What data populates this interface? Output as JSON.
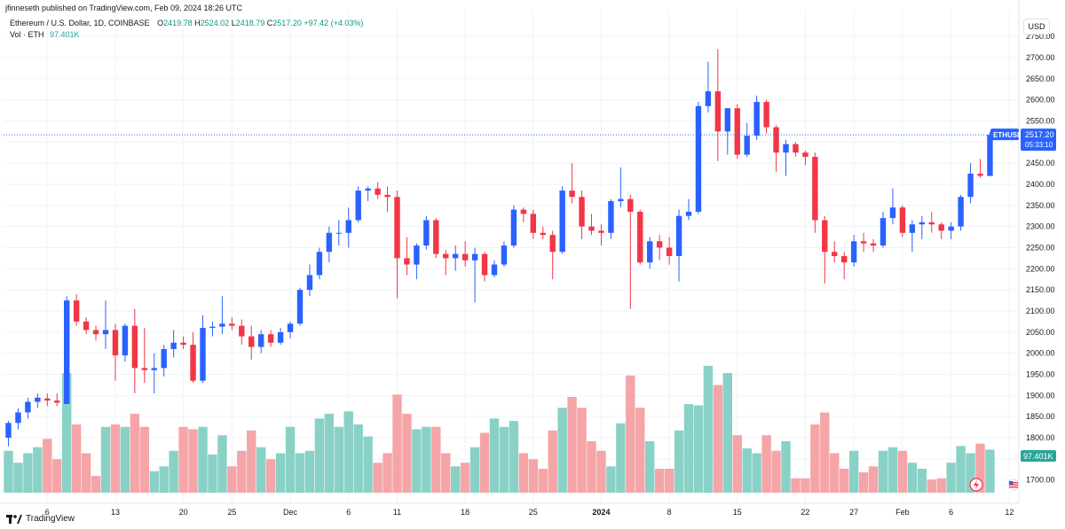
{
  "header": {
    "published_text": "jfinneseth published on TradingView.com, Feb 09, 2024 18:26 UTC",
    "symbol_title": "Ethereum / U.S. Dollar, 1D, COINBASE",
    "open_label": "O",
    "open_value": "2419.78",
    "high_label": "H",
    "high_value": "2524.02",
    "low_label": "L",
    "low_value": "2418.79",
    "close_label": "C",
    "close_value": "2517.20",
    "change_value": "+97.42 (+4.03%)",
    "volume_label": "Vol · ETH",
    "volume_value": "97.401K"
  },
  "currency_button": "USD",
  "price_badge": {
    "symbol": "ETHUSD",
    "price": "2517.20",
    "countdown": "05:33:10"
  },
  "volume_badge": "97.401K",
  "branding": "TradingView",
  "colors": {
    "up": "#2962ff",
    "down": "#f23645",
    "vol_up": "#89d1c6",
    "vol_down": "#f5a5a7",
    "last_price": "#2962ff"
  },
  "chart_data": {
    "type": "candlestick",
    "symbol": "ETHUSD",
    "interval": "1D",
    "price_axis": {
      "ticks": [
        1700,
        1750,
        1800,
        1850,
        1900,
        1950,
        2000,
        2050,
        2100,
        2150,
        2200,
        2250,
        2300,
        2350,
        2400,
        2450,
        2500,
        2550,
        2600,
        2650,
        2700,
        2750
      ],
      "range": [
        1670,
        2790
      ]
    },
    "x_axis": {
      "ticks": [
        {
          "label": "6",
          "index": 4
        },
        {
          "label": "13",
          "index": 11
        },
        {
          "label": "20",
          "index": 18
        },
        {
          "label": "25",
          "index": 23
        },
        {
          "label": "Dec",
          "index": 29
        },
        {
          "label": "6",
          "index": 35
        },
        {
          "label": "11",
          "index": 40
        },
        {
          "label": "18",
          "index": 47
        },
        {
          "label": "25",
          "index": 54
        },
        {
          "label": "2024",
          "index": 61
        },
        {
          "label": "8",
          "index": 68
        },
        {
          "label": "15",
          "index": 75
        },
        {
          "label": "22",
          "index": 82
        },
        {
          "label": "27",
          "index": 87
        },
        {
          "label": "Feb",
          "index": 92
        },
        {
          "label": "6",
          "index": 97
        },
        {
          "label": "12",
          "index": 103
        }
      ]
    },
    "last_price": 2517.2,
    "candles": [
      {
        "o": 1800,
        "h": 1840,
        "l": 1780,
        "c": 1835,
        "v": 0.35
      },
      {
        "o": 1835,
        "h": 1870,
        "l": 1820,
        "c": 1860,
        "v": 0.25
      },
      {
        "o": 1860,
        "h": 1895,
        "l": 1845,
        "c": 1885,
        "v": 0.33
      },
      {
        "o": 1885,
        "h": 1905,
        "l": 1870,
        "c": 1895,
        "v": 0.38
      },
      {
        "o": 1893,
        "h": 1905,
        "l": 1875,
        "c": 1888,
        "v": 0.45
      },
      {
        "o": 1888,
        "h": 1905,
        "l": 1875,
        "c": 1883,
        "v": 0.28
      },
      {
        "o": 1880,
        "h": 2135,
        "l": 1880,
        "c": 2125,
        "v": 1.0
      },
      {
        "o": 2125,
        "h": 2140,
        "l": 2065,
        "c": 2075,
        "v": 0.57
      },
      {
        "o": 2075,
        "h": 2085,
        "l": 2045,
        "c": 2055,
        "v": 0.33
      },
      {
        "o": 2055,
        "h": 2065,
        "l": 2030,
        "c": 2045,
        "v": 0.14
      },
      {
        "o": 2045,
        "h": 2125,
        "l": 2010,
        "c": 2055,
        "v": 0.55
      },
      {
        "o": 2055,
        "h": 2070,
        "l": 1935,
        "c": 1995,
        "v": 0.57
      },
      {
        "o": 1995,
        "h": 2070,
        "l": 1980,
        "c": 2065,
        "v": 0.55
      },
      {
        "o": 2065,
        "h": 2105,
        "l": 1905,
        "c": 1965,
        "v": 0.66
      },
      {
        "o": 1965,
        "h": 2060,
        "l": 1930,
        "c": 1960,
        "v": 0.55
      },
      {
        "o": 1960,
        "h": 2000,
        "l": 1905,
        "c": 1965,
        "v": 0.18
      },
      {
        "o": 1965,
        "h": 2020,
        "l": 1945,
        "c": 2010,
        "v": 0.22
      },
      {
        "o": 2010,
        "h": 2055,
        "l": 1990,
        "c": 2025,
        "v": 0.35
      },
      {
        "o": 2025,
        "h": 2040,
        "l": 2010,
        "c": 2020,
        "v": 0.55
      },
      {
        "o": 2020,
        "h": 2050,
        "l": 1930,
        "c": 1935,
        "v": 0.53
      },
      {
        "o": 1935,
        "h": 2090,
        "l": 1930,
        "c": 2060,
        "v": 0.55
      },
      {
        "o": 2060,
        "h": 2075,
        "l": 2040,
        "c": 2063,
        "v": 0.32
      },
      {
        "o": 2063,
        "h": 2135,
        "l": 2045,
        "c": 2070,
        "v": 0.48
      },
      {
        "o": 2070,
        "h": 2085,
        "l": 2055,
        "c": 2065,
        "v": 0.22
      },
      {
        "o": 2065,
        "h": 2080,
        "l": 2020,
        "c": 2040,
        "v": 0.35
      },
      {
        "o": 2040,
        "h": 2065,
        "l": 1985,
        "c": 2015,
        "v": 0.52
      },
      {
        "o": 2015,
        "h": 2055,
        "l": 2000,
        "c": 2045,
        "v": 0.38
      },
      {
        "o": 2045,
        "h": 2055,
        "l": 2015,
        "c": 2025,
        "v": 0.28
      },
      {
        "o": 2025,
        "h": 2060,
        "l": 2020,
        "c": 2050,
        "v": 0.33
      },
      {
        "o": 2050,
        "h": 2075,
        "l": 2035,
        "c": 2070,
        "v": 0.55
      },
      {
        "o": 2070,
        "h": 2155,
        "l": 2065,
        "c": 2150,
        "v": 0.33
      },
      {
        "o": 2150,
        "h": 2210,
        "l": 2135,
        "c": 2185,
        "v": 0.35
      },
      {
        "o": 2185,
        "h": 2250,
        "l": 2175,
        "c": 2240,
        "v": 0.62
      },
      {
        "o": 2240,
        "h": 2300,
        "l": 2215,
        "c": 2285,
        "v": 0.66
      },
      {
        "o": 2285,
        "h": 2315,
        "l": 2255,
        "c": 2285,
        "v": 0.55
      },
      {
        "o": 2285,
        "h": 2345,
        "l": 2250,
        "c": 2315,
        "v": 0.68
      },
      {
        "o": 2315,
        "h": 2395,
        "l": 2310,
        "c": 2385,
        "v": 0.57
      },
      {
        "o": 2385,
        "h": 2395,
        "l": 2360,
        "c": 2390,
        "v": 0.47
      },
      {
        "o": 2390,
        "h": 2405,
        "l": 2365,
        "c": 2375,
        "v": 0.25
      },
      {
        "o": 2375,
        "h": 2395,
        "l": 2335,
        "c": 2370,
        "v": 0.33
      },
      {
        "o": 2370,
        "h": 2385,
        "l": 2130,
        "c": 2225,
        "v": 0.82
      },
      {
        "o": 2225,
        "h": 2275,
        "l": 2185,
        "c": 2210,
        "v": 0.66
      },
      {
        "o": 2210,
        "h": 2260,
        "l": 2175,
        "c": 2255,
        "v": 0.53
      },
      {
        "o": 2255,
        "h": 2325,
        "l": 2245,
        "c": 2315,
        "v": 0.55
      },
      {
        "o": 2315,
        "h": 2320,
        "l": 2225,
        "c": 2235,
        "v": 0.55
      },
      {
        "o": 2235,
        "h": 2245,
        "l": 2185,
        "c": 2225,
        "v": 0.33
      },
      {
        "o": 2225,
        "h": 2255,
        "l": 2195,
        "c": 2235,
        "v": 0.22
      },
      {
        "o": 2235,
        "h": 2265,
        "l": 2205,
        "c": 2220,
        "v": 0.25
      },
      {
        "o": 2220,
        "h": 2250,
        "l": 2120,
        "c": 2235,
        "v": 0.38
      },
      {
        "o": 2235,
        "h": 2240,
        "l": 2170,
        "c": 2185,
        "v": 0.5
      },
      {
        "o": 2185,
        "h": 2220,
        "l": 2180,
        "c": 2210,
        "v": 0.62
      },
      {
        "o": 2210,
        "h": 2265,
        "l": 2205,
        "c": 2255,
        "v": 0.55
      },
      {
        "o": 2255,
        "h": 2350,
        "l": 2250,
        "c": 2340,
        "v": 0.6
      },
      {
        "o": 2340,
        "h": 2345,
        "l": 2310,
        "c": 2330,
        "v": 0.33
      },
      {
        "o": 2330,
        "h": 2340,
        "l": 2270,
        "c": 2285,
        "v": 0.28
      },
      {
        "o": 2285,
        "h": 2300,
        "l": 2270,
        "c": 2280,
        "v": 0.2
      },
      {
        "o": 2280,
        "h": 2290,
        "l": 2175,
        "c": 2240,
        "v": 0.52
      },
      {
        "o": 2240,
        "h": 2395,
        "l": 2235,
        "c": 2385,
        "v": 0.71
      },
      {
        "o": 2385,
        "h": 2450,
        "l": 2355,
        "c": 2370,
        "v": 0.8
      },
      {
        "o": 2370,
        "h": 2385,
        "l": 2270,
        "c": 2300,
        "v": 0.71
      },
      {
        "o": 2300,
        "h": 2330,
        "l": 2280,
        "c": 2290,
        "v": 0.43
      },
      {
        "o": 2290,
        "h": 2305,
        "l": 2255,
        "c": 2285,
        "v": 0.35
      },
      {
        "o": 2285,
        "h": 2365,
        "l": 2270,
        "c": 2360,
        "v": 0.22
      },
      {
        "o": 2360,
        "h": 2440,
        "l": 2345,
        "c": 2365,
        "v": 0.58
      },
      {
        "o": 2365,
        "h": 2375,
        "l": 2105,
        "c": 2335,
        "v": 0.98
      },
      {
        "o": 2335,
        "h": 2340,
        "l": 2210,
        "c": 2215,
        "v": 0.71
      },
      {
        "o": 2215,
        "h": 2275,
        "l": 2200,
        "c": 2265,
        "v": 0.43
      },
      {
        "o": 2265,
        "h": 2280,
        "l": 2220,
        "c": 2250,
        "v": 0.2
      },
      {
        "o": 2250,
        "h": 2275,
        "l": 2210,
        "c": 2230,
        "v": 0.2
      },
      {
        "o": 2230,
        "h": 2340,
        "l": 2170,
        "c": 2325,
        "v": 0.52
      },
      {
        "o": 2325,
        "h": 2365,
        "l": 2315,
        "c": 2335,
        "v": 0.74
      },
      {
        "o": 2335,
        "h": 2595,
        "l": 2330,
        "c": 2585,
        "v": 0.73
      },
      {
        "o": 2585,
        "h": 2690,
        "l": 2570,
        "c": 2620,
        "v": 1.06
      },
      {
        "o": 2620,
        "h": 2720,
        "l": 2455,
        "c": 2525,
        "v": 0.9
      },
      {
        "o": 2525,
        "h": 2580,
        "l": 2470,
        "c": 2580,
        "v": 1.0
      },
      {
        "o": 2580,
        "h": 2590,
        "l": 2460,
        "c": 2470,
        "v": 0.48
      },
      {
        "o": 2470,
        "h": 2545,
        "l": 2465,
        "c": 2515,
        "v": 0.37
      },
      {
        "o": 2515,
        "h": 2610,
        "l": 2505,
        "c": 2595,
        "v": 0.33
      },
      {
        "o": 2595,
        "h": 2600,
        "l": 2520,
        "c": 2535,
        "v": 0.48
      },
      {
        "o": 2535,
        "h": 2540,
        "l": 2430,
        "c": 2475,
        "v": 0.35
      },
      {
        "o": 2475,
        "h": 2505,
        "l": 2420,
        "c": 2495,
        "v": 0.43
      },
      {
        "o": 2495,
        "h": 2500,
        "l": 2465,
        "c": 2475,
        "v": 0.12
      },
      {
        "o": 2475,
        "h": 2480,
        "l": 2445,
        "c": 2465,
        "v": 0.12
      },
      {
        "o": 2465,
        "h": 2475,
        "l": 2285,
        "c": 2315,
        "v": 0.57
      },
      {
        "o": 2315,
        "h": 2325,
        "l": 2165,
        "c": 2240,
        "v": 0.67
      },
      {
        "o": 2240,
        "h": 2265,
        "l": 2215,
        "c": 2230,
        "v": 0.33
      },
      {
        "o": 2230,
        "h": 2240,
        "l": 2175,
        "c": 2215,
        "v": 0.2
      },
      {
        "o": 2215,
        "h": 2280,
        "l": 2205,
        "c": 2265,
        "v": 0.35
      },
      {
        "o": 2265,
        "h": 2285,
        "l": 2240,
        "c": 2260,
        "v": 0.17
      },
      {
        "o": 2260,
        "h": 2270,
        "l": 2240,
        "c": 2255,
        "v": 0.22
      },
      {
        "o": 2255,
        "h": 2335,
        "l": 2250,
        "c": 2320,
        "v": 0.35
      },
      {
        "o": 2320,
        "h": 2390,
        "l": 2305,
        "c": 2345,
        "v": 0.38
      },
      {
        "o": 2345,
        "h": 2350,
        "l": 2275,
        "c": 2285,
        "v": 0.35
      },
      {
        "o": 2285,
        "h": 2315,
        "l": 2240,
        "c": 2305,
        "v": 0.25
      },
      {
        "o": 2305,
        "h": 2325,
        "l": 2270,
        "c": 2310,
        "v": 0.2
      },
      {
        "o": 2310,
        "h": 2335,
        "l": 2285,
        "c": 2305,
        "v": 0.11
      },
      {
        "o": 2305,
        "h": 2310,
        "l": 2270,
        "c": 2290,
        "v": 0.12
      },
      {
        "o": 2290,
        "h": 2310,
        "l": 2270,
        "c": 2300,
        "v": 0.25
      },
      {
        "o": 2300,
        "h": 2375,
        "l": 2290,
        "c": 2370,
        "v": 0.39
      },
      {
        "o": 2370,
        "h": 2450,
        "l": 2355,
        "c": 2425,
        "v": 0.33
      },
      {
        "o": 2425,
        "h": 2460,
        "l": 2415,
        "c": 2420,
        "v": 0.41
      },
      {
        "o": 2419.78,
        "h": 2524.02,
        "l": 2418.79,
        "c": 2517.2,
        "v": 0.36
      }
    ]
  }
}
